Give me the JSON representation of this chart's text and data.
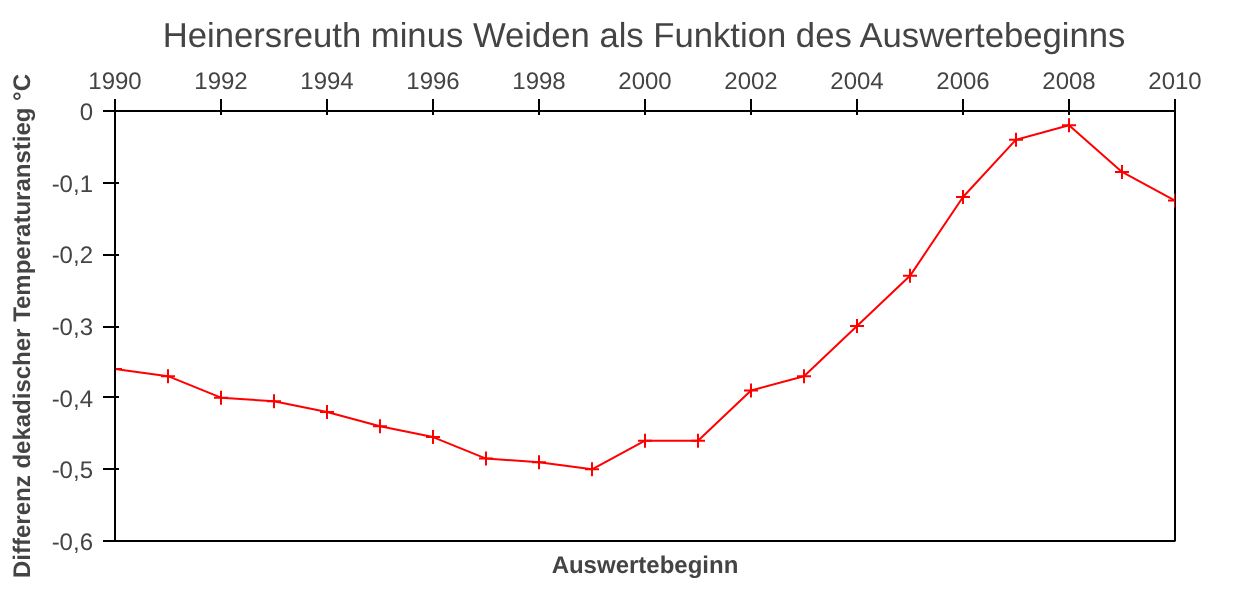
{
  "chart_data": {
    "type": "line",
    "title": "Heinersreuth minus Weiden als Funktion des Auswertebeginns",
    "xlabel": "Auswertebeginn",
    "ylabel": "Differenz dekadischer Temperaturanstieg °C",
    "x": [
      1990,
      1991,
      1992,
      1993,
      1994,
      1995,
      1996,
      1997,
      1998,
      1999,
      2000,
      2001,
      2002,
      2003,
      2004,
      2005,
      2006,
      2007,
      2008,
      2009,
      2010
    ],
    "series": [
      {
        "color": "#ff0000",
        "values": [
          -0.36,
          -0.37,
          -0.4,
          -0.405,
          -0.42,
          -0.44,
          -0.455,
          -0.485,
          -0.49,
          -0.5,
          -0.46,
          -0.46,
          -0.39,
          -0.37,
          -0.3,
          -0.23,
          -0.12,
          -0.04,
          -0.02,
          -0.085,
          -0.125
        ]
      }
    ],
    "xlim": [
      1990,
      2010
    ],
    "xticks": [
      1990,
      1992,
      1994,
      1996,
      1998,
      2000,
      2002,
      2004,
      2006,
      2008,
      2010
    ],
    "ylim": [
      -0.6,
      0
    ],
    "yticks": [
      {
        "value": -0.6,
        "label": "-0,6"
      },
      {
        "value": -0.5,
        "label": "-0,5"
      },
      {
        "value": -0.4,
        "label": "-0,4"
      },
      {
        "value": -0.3,
        "label": "-0,3"
      },
      {
        "value": -0.2,
        "label": "-0,2"
      },
      {
        "value": -0.1,
        "label": "-0,1"
      },
      {
        "value": 0,
        "label": "0"
      }
    ],
    "grid": false,
    "marker": "cross",
    "line_style": "solid"
  }
}
